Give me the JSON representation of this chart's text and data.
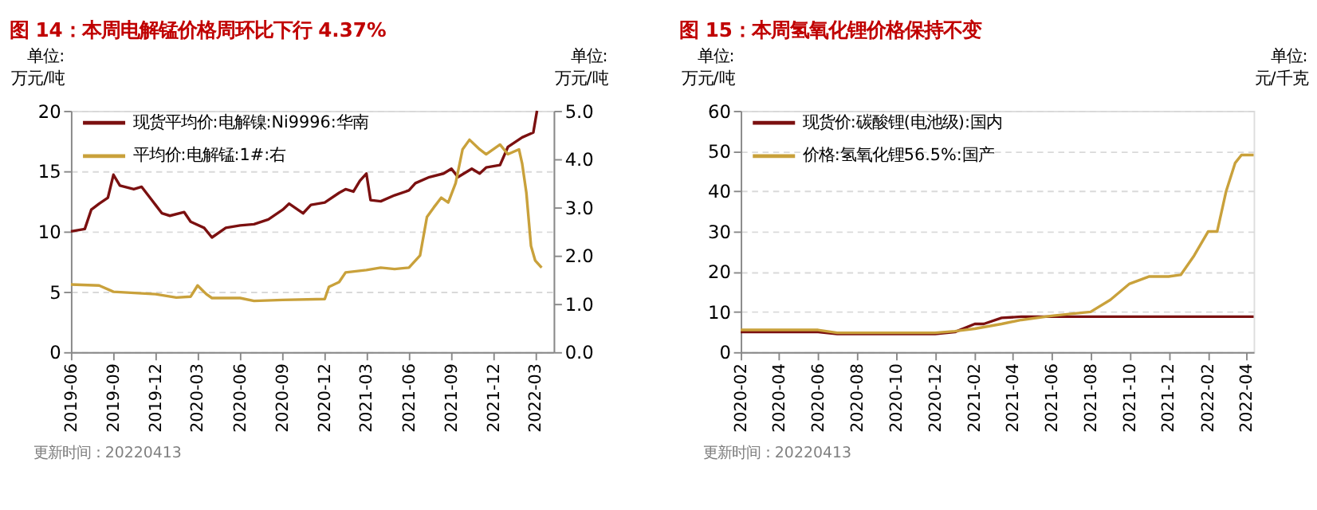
{
  "chart_data": [
    {
      "type": "line",
      "title": "图 14：本周电解锰价格周环比下行 4.37%",
      "ylabel": "单位:\n万元/吨",
      "y2label": "单位:\n万元/吨",
      "legend": "top left",
      "grid": "y",
      "xlim": [
        "2019-06-01",
        "2022-04-10"
      ],
      "xticks": [
        "2019-06",
        "2019-09",
        "2019-12",
        "2020-03",
        "2020-06",
        "2020-09",
        "2020-12",
        "2021-03",
        "2021-06",
        "2021-09",
        "2021-12",
        "2022-03"
      ],
      "ylim": [
        0,
        20
      ],
      "yticks": [
        0,
        5,
        10,
        15,
        20
      ],
      "y2lim": [
        0,
        5
      ],
      "y2ticks": [
        {
          "value": 0,
          "label": "0.0"
        },
        {
          "value": 1,
          "label": "1.0"
        },
        {
          "value": 2,
          "label": "2.0"
        },
        {
          "value": 3,
          "label": "3.0"
        },
        {
          "value": 4,
          "label": "4.0"
        },
        {
          "value": 5,
          "label": "5.0"
        }
      ],
      "annotations": [
        "更新时间：20220413"
      ],
      "series": [
        {
          "name": "现货平均价:电解镍:Ni9996:华南",
          "color": "#7b1010",
          "x": [
            "2019-06-01",
            "2019-07-01",
            "2019-07-15",
            "2019-08-01",
            "2019-08-20",
            "2019-09-01",
            "2019-09-15",
            "2019-10-15",
            "2019-11-01",
            "2019-11-15",
            "2019-12-01",
            "2019-12-15",
            "2020-01-01",
            "2020-02-01",
            "2020-02-15",
            "2020-03-15",
            "2020-04-01",
            "2020-05-01",
            "2020-06-01",
            "2020-07-01",
            "2020-08-01",
            "2020-09-01",
            "2020-09-15",
            "2020-10-15",
            "2020-11-01",
            "2020-12-01",
            "2021-01-01",
            "2021-01-15",
            "2021-02-01",
            "2021-02-15",
            "2021-03-01",
            "2021-03-10",
            "2021-04-01",
            "2021-05-01",
            "2021-06-01",
            "2021-06-15",
            "2021-07-15",
            "2021-08-15",
            "2021-09-01",
            "2021-09-15",
            "2021-10-15",
            "2021-11-01",
            "2021-11-15",
            "2021-12-15",
            "2022-01-01",
            "2022-02-01",
            "2022-02-25",
            "2022-03-05"
          ],
          "values": [
            10,
            10.2,
            11.8,
            12.3,
            12.8,
            14.7,
            13.8,
            13.5,
            13.7,
            13,
            12.2,
            11.5,
            11.3,
            11.6,
            10.8,
            10.3,
            9.5,
            10.3,
            10.5,
            10.6,
            11,
            11.8,
            12.3,
            11.5,
            12.2,
            12.4,
            13.2,
            13.5,
            13.3,
            14.2,
            14.8,
            12.6,
            12.5,
            13,
            13.4,
            14,
            14.5,
            14.8,
            15.2,
            14.5,
            15.2,
            14.8,
            15.3,
            15.5,
            17,
            17.8,
            18.2,
            20
          ]
        },
        {
          "name": "平均价:电解锰:1#:右",
          "color": "#c9a13b",
          "axis": "y2",
          "x": [
            "2019-06-01",
            "2019-08-01",
            "2019-09-01",
            "2019-12-01",
            "2020-01-15",
            "2020-02-15",
            "2020-03-01",
            "2020-03-20",
            "2020-04-01",
            "2020-06-01",
            "2020-07-01",
            "2020-09-01",
            "2020-12-01",
            "2020-12-10",
            "2021-01-01",
            "2021-01-15",
            "2021-03-01",
            "2021-04-01",
            "2021-05-01",
            "2021-06-01",
            "2021-06-25",
            "2021-07-10",
            "2021-07-25",
            "2021-08-10",
            "2021-08-25",
            "2021-09-10",
            "2021-09-25",
            "2021-10-10",
            "2021-11-01",
            "2021-11-15",
            "2021-12-15",
            "2022-01-01",
            "2022-01-25",
            "2022-02-01",
            "2022-02-10",
            "2022-02-20",
            "2022-03-01",
            "2022-03-15"
          ],
          "values": [
            1.4,
            1.38,
            1.25,
            1.2,
            1.13,
            1.15,
            1.38,
            1.2,
            1.12,
            1.12,
            1.06,
            1.08,
            1.1,
            1.35,
            1.45,
            1.65,
            1.7,
            1.75,
            1.72,
            1.75,
            2,
            2.8,
            3,
            3.2,
            3.1,
            3.5,
            4.2,
            4.4,
            4.2,
            4.1,
            4.3,
            4.1,
            4.2,
            3.9,
            3.3,
            2.2,
            1.9,
            1.75
          ]
        }
      ]
    },
    {
      "type": "line",
      "title": "图 15：本周氢氧化锂价格保持不变",
      "ylabel": "单位:\n万元/吨",
      "y2label": "单位:\n元/千克",
      "legend": "top left",
      "grid": "y",
      "xlim": [
        "2020-02-01",
        "2022-04-13"
      ],
      "xticks": [
        "2020-02",
        "2020-04",
        "2020-06",
        "2020-08",
        "2020-10",
        "2020-12",
        "2021-02",
        "2021-04",
        "2021-06",
        "2021-08",
        "2021-10",
        "2021-12",
        "2022-02",
        "2022-04"
      ],
      "ylim": [
        0,
        60
      ],
      "yticks": [
        0,
        10,
        20,
        30,
        40,
        50,
        60
      ],
      "annotations": [
        "更新时间：20220413"
      ],
      "series": [
        {
          "name": "现货价:碳酸锂(电池级):国内",
          "color": "#7b1010",
          "x": [
            "2020-02-01",
            "2020-06-01",
            "2020-07-01",
            "2020-12-01",
            "2021-01-01",
            "2021-02-01",
            "2021-02-15",
            "2021-03-15",
            "2021-04-15",
            "2021-06-01",
            "2022-04-13"
          ],
          "values": [
            5,
            5,
            4.5,
            4.5,
            5,
            7,
            7,
            8.5,
            8.8,
            8.8,
            8.8
          ]
        },
        {
          "name": "价格:氢氧化锂56.5%:国产",
          "color": "#c9a13b",
          "x": [
            "2020-02-01",
            "2020-06-01",
            "2020-07-01",
            "2020-12-01",
            "2021-01-01",
            "2021-02-01",
            "2021-03-15",
            "2021-04-15",
            "2021-06-01",
            "2021-07-01",
            "2021-08-01",
            "2021-09-01",
            "2021-10-01",
            "2021-11-01",
            "2021-12-01",
            "2021-12-20",
            "2022-01-10",
            "2022-02-01",
            "2022-02-15",
            "2022-03-01",
            "2022-03-15",
            "2022-03-25",
            "2022-04-13"
          ],
          "values": [
            5.5,
            5.5,
            4.8,
            4.8,
            5.2,
            5.8,
            7,
            8,
            9,
            9.5,
            10,
            13,
            17,
            18.8,
            18.8,
            19.2,
            24,
            30,
            30,
            40,
            47,
            49,
            49
          ]
        }
      ]
    }
  ]
}
